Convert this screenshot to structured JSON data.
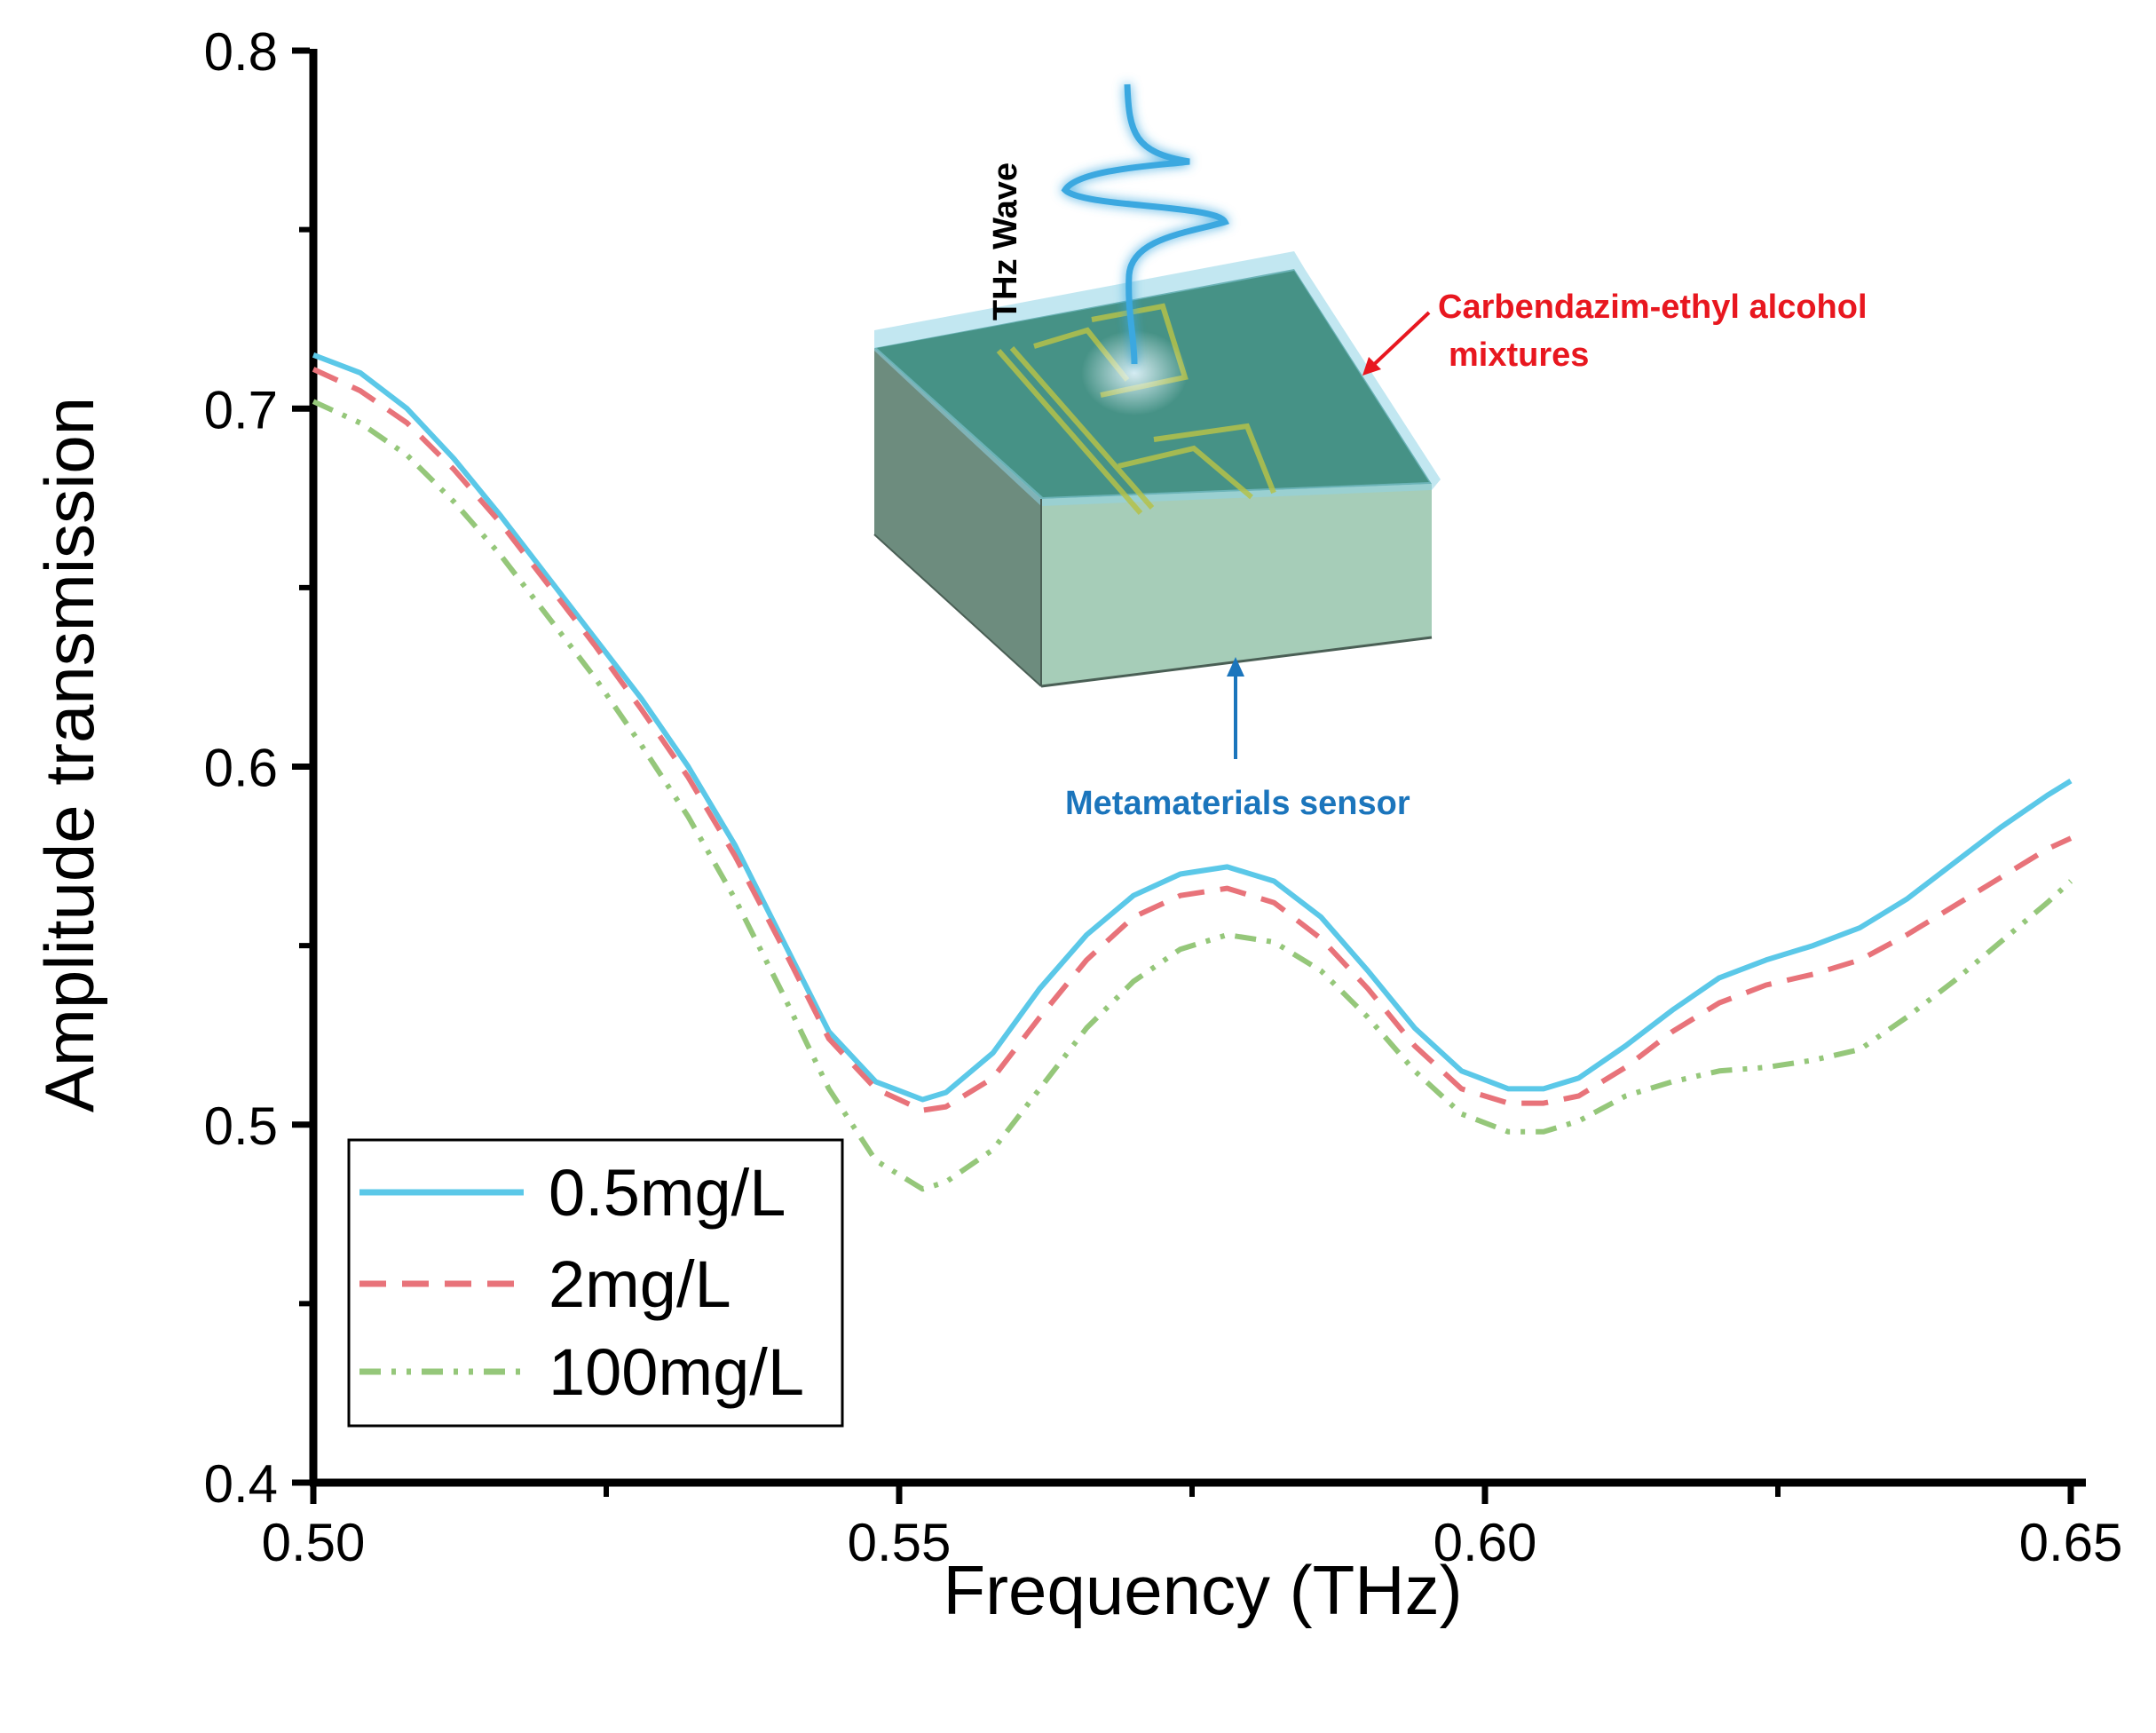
{
  "chart_data": {
    "type": "line",
    "xlabel": "Frequency (THz)",
    "ylabel": "Amplitude transmission",
    "xlim": [
      0.5,
      0.65
    ],
    "ylim": [
      0.4,
      0.8
    ],
    "x_ticks": [
      "0.50",
      "0.55",
      "0.60",
      "0.65"
    ],
    "y_ticks": [
      "0.4",
      "0.5",
      "0.6",
      "0.7",
      "0.8"
    ],
    "grid": false,
    "legend_position": "bottom-left",
    "series": [
      {
        "name": "0.5mg/L",
        "color": "#5BC8E8",
        "style": "solid",
        "x": [
          0.5,
          0.504,
          0.508,
          0.512,
          0.516,
          0.52,
          0.524,
          0.528,
          0.532,
          0.536,
          0.54,
          0.544,
          0.548,
          0.552,
          0.554,
          0.558,
          0.562,
          0.566,
          0.57,
          0.574,
          0.578,
          0.582,
          0.586,
          0.59,
          0.594,
          0.598,
          0.602,
          0.605,
          0.608,
          0.612,
          0.616,
          0.62,
          0.624,
          0.628,
          0.632,
          0.636,
          0.64,
          0.644,
          0.648,
          0.65
        ],
        "y": [
          0.715,
          0.71,
          0.7,
          0.686,
          0.67,
          0.653,
          0.636,
          0.619,
          0.6,
          0.578,
          0.552,
          0.526,
          0.512,
          0.507,
          0.509,
          0.52,
          0.538,
          0.553,
          0.564,
          0.57,
          0.572,
          0.568,
          0.558,
          0.543,
          0.527,
          0.515,
          0.51,
          0.51,
          0.513,
          0.522,
          0.532,
          0.541,
          0.546,
          0.55,
          0.555,
          0.563,
          0.573,
          0.583,
          0.592,
          0.596
        ]
      },
      {
        "name": "2mg/L",
        "color": "#E8737A",
        "style": "dashed",
        "x": [
          0.5,
          0.504,
          0.508,
          0.512,
          0.516,
          0.52,
          0.524,
          0.528,
          0.532,
          0.536,
          0.54,
          0.544,
          0.548,
          0.552,
          0.554,
          0.558,
          0.562,
          0.566,
          0.57,
          0.574,
          0.578,
          0.582,
          0.586,
          0.59,
          0.594,
          0.598,
          0.602,
          0.605,
          0.608,
          0.612,
          0.616,
          0.62,
          0.624,
          0.628,
          0.632,
          0.636,
          0.64,
          0.644,
          0.648,
          0.65
        ],
        "y": [
          0.711,
          0.705,
          0.696,
          0.683,
          0.668,
          0.651,
          0.634,
          0.616,
          0.597,
          0.575,
          0.55,
          0.524,
          0.51,
          0.504,
          0.505,
          0.513,
          0.53,
          0.546,
          0.558,
          0.564,
          0.566,
          0.562,
          0.552,
          0.538,
          0.522,
          0.51,
          0.506,
          0.506,
          0.508,
          0.516,
          0.526,
          0.534,
          0.539,
          0.542,
          0.546,
          0.553,
          0.561,
          0.569,
          0.577,
          0.58
        ]
      },
      {
        "name": "100mg/L",
        "color": "#95C77A",
        "style": "dash-dot-dot",
        "x": [
          0.5,
          0.504,
          0.508,
          0.512,
          0.516,
          0.52,
          0.524,
          0.528,
          0.532,
          0.536,
          0.54,
          0.544,
          0.548,
          0.552,
          0.554,
          0.558,
          0.562,
          0.566,
          0.57,
          0.574,
          0.578,
          0.582,
          0.586,
          0.59,
          0.594,
          0.598,
          0.602,
          0.605,
          0.608,
          0.612,
          0.616,
          0.62,
          0.624,
          0.628,
          0.632,
          0.636,
          0.64,
          0.644,
          0.648,
          0.65
        ],
        "y": [
          0.702,
          0.696,
          0.687,
          0.674,
          0.659,
          0.642,
          0.625,
          0.606,
          0.586,
          0.563,
          0.537,
          0.51,
          0.49,
          0.482,
          0.484,
          0.493,
          0.51,
          0.527,
          0.54,
          0.549,
          0.553,
          0.551,
          0.543,
          0.53,
          0.515,
          0.503,
          0.498,
          0.498,
          0.501,
          0.508,
          0.512,
          0.515,
          0.516,
          0.518,
          0.521,
          0.53,
          0.54,
          0.551,
          0.562,
          0.568
        ]
      }
    ],
    "annotations": {
      "wave_label": "THz Wave",
      "mixture_label_line1": "Carbendazim-ethyl alcohol",
      "mixture_label_line2": "mixtures",
      "sensor_label": "Metamaterials sensor"
    }
  },
  "colors": {
    "axis": "#000000",
    "wave": "#3AA8E0",
    "mixture_text": "#E8171F",
    "sensor_text": "#1B75BC",
    "slab_top": "#3F8C7E",
    "slab_front": "#A6CDB8",
    "slab_side": "#6D8C7E",
    "film": "#8FD3E6",
    "resonator": "#B5C24A"
  }
}
